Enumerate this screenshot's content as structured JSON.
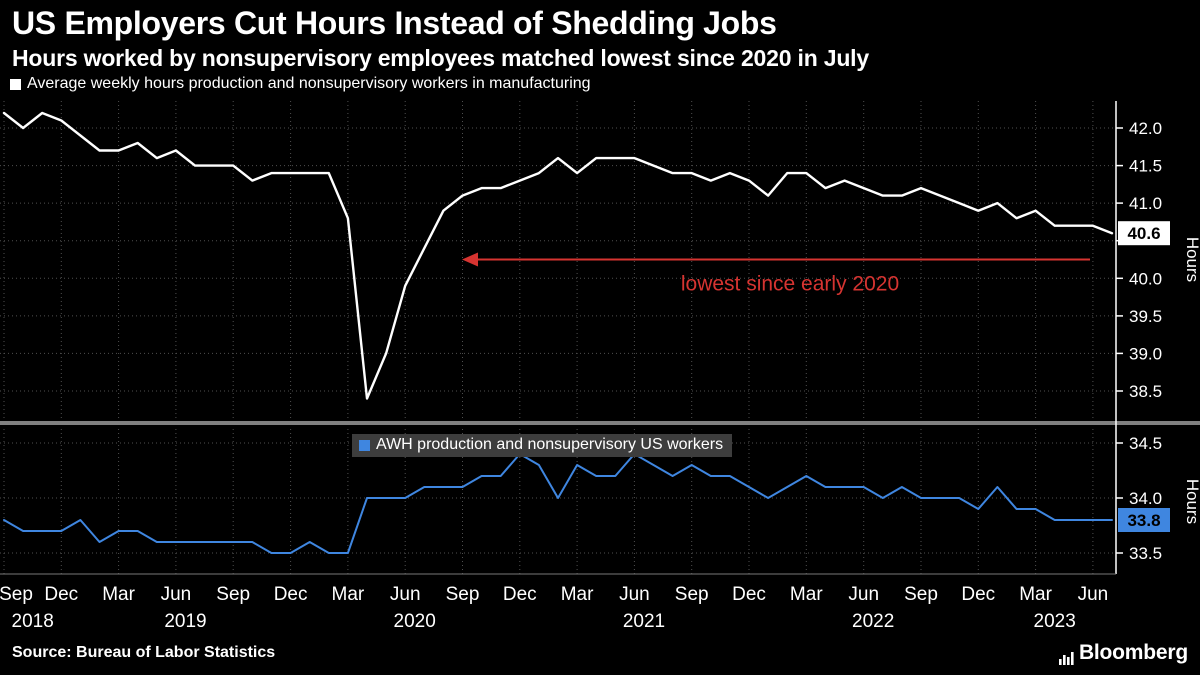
{
  "header": {
    "title": "US Employers Cut Hours Instead of Shedding Jobs",
    "subtitle": "Hours worked by nonsupervisory employees matched lowest since 2020 in July"
  },
  "footer": {
    "source": "Source: Bureau of Labor Statistics",
    "brand": "Bloomberg"
  },
  "chart_data": {
    "type": "line",
    "ylabel": "Hours",
    "grid": "dotted",
    "background": "#000000",
    "x_monthly": {
      "start": "2018-09",
      "end": "2023-07"
    },
    "x_axis": {
      "tick_labels": [
        "Sep",
        "Dec",
        "Mar",
        "Jun",
        "Sep",
        "Dec",
        "Mar",
        "Jun",
        "Sep",
        "Dec",
        "Mar",
        "Jun",
        "Sep",
        "Dec",
        "Mar",
        "Jun",
        "Sep",
        "Dec",
        "Mar",
        "Jun"
      ],
      "year_spans": [
        {
          "label": "2018",
          "from": 0,
          "to": 3
        },
        {
          "label": "2019",
          "from": 4,
          "to": 15
        },
        {
          "label": "2020",
          "from": 16,
          "to": 27
        },
        {
          "label": "2021",
          "from": 28,
          "to": 39
        },
        {
          "label": "2022",
          "from": 40,
          "to": 51
        },
        {
          "label": "2023",
          "from": 52,
          "to": 58
        }
      ]
    },
    "annotation": {
      "text": "lowest since early 2020",
      "color": "#d63431",
      "y_value": 40.25
    },
    "panels": [
      {
        "name": "manufacturing",
        "legend": "Average weekly hours production and nonsupervisory workers in manufacturing",
        "color": "#ffffff",
        "badge_color": "#ffffff",
        "yticks": [
          38.5,
          39.0,
          39.5,
          40.0,
          40.5,
          41.0,
          41.5,
          42.0
        ],
        "hidden_tick_labels": [
          40.5
        ],
        "ylim": [
          38.5,
          42.0
        ],
        "last_value": 40.6,
        "last_value_label": "40.6",
        "values": [
          42.2,
          42.0,
          42.2,
          42.1,
          41.9,
          41.7,
          41.7,
          41.8,
          41.6,
          41.7,
          41.5,
          41.5,
          41.5,
          41.3,
          41.4,
          41.4,
          41.4,
          41.4,
          40.8,
          38.4,
          39.0,
          39.9,
          40.4,
          40.9,
          41.1,
          41.2,
          41.2,
          41.3,
          41.4,
          41.6,
          41.4,
          41.6,
          41.6,
          41.6,
          41.5,
          41.4,
          41.4,
          41.3,
          41.4,
          41.3,
          41.1,
          41.4,
          41.4,
          41.2,
          41.3,
          41.2,
          41.1,
          41.1,
          41.2,
          41.1,
          41.0,
          40.9,
          41.0,
          40.8,
          40.9,
          40.7,
          40.7,
          40.7,
          40.6
        ]
      },
      {
        "name": "us-total-private",
        "legend": "AWH production and nonsupervisory US workers",
        "color": "#3f86e0",
        "badge_color": "#3f86e0",
        "yticks": [
          33.5,
          34.0,
          34.5
        ],
        "hidden_tick_labels": [],
        "ylim": [
          33.5,
          34.5
        ],
        "last_value": 33.8,
        "last_value_label": "33.8",
        "values": [
          33.8,
          33.7,
          33.7,
          33.7,
          33.8,
          33.6,
          33.7,
          33.7,
          33.6,
          33.6,
          33.6,
          33.6,
          33.6,
          33.6,
          33.5,
          33.5,
          33.6,
          33.5,
          33.5,
          34.0,
          34.0,
          34.0,
          34.1,
          34.1,
          34.1,
          34.2,
          34.2,
          34.4,
          34.3,
          34.0,
          34.3,
          34.2,
          34.2,
          34.4,
          34.3,
          34.2,
          34.3,
          34.2,
          34.2,
          34.1,
          34.0,
          34.1,
          34.2,
          34.1,
          34.1,
          34.1,
          34.0,
          34.1,
          34.0,
          34.0,
          34.0,
          33.9,
          34.1,
          33.9,
          33.9,
          33.8,
          33.8,
          33.8,
          33.8
        ]
      }
    ]
  }
}
